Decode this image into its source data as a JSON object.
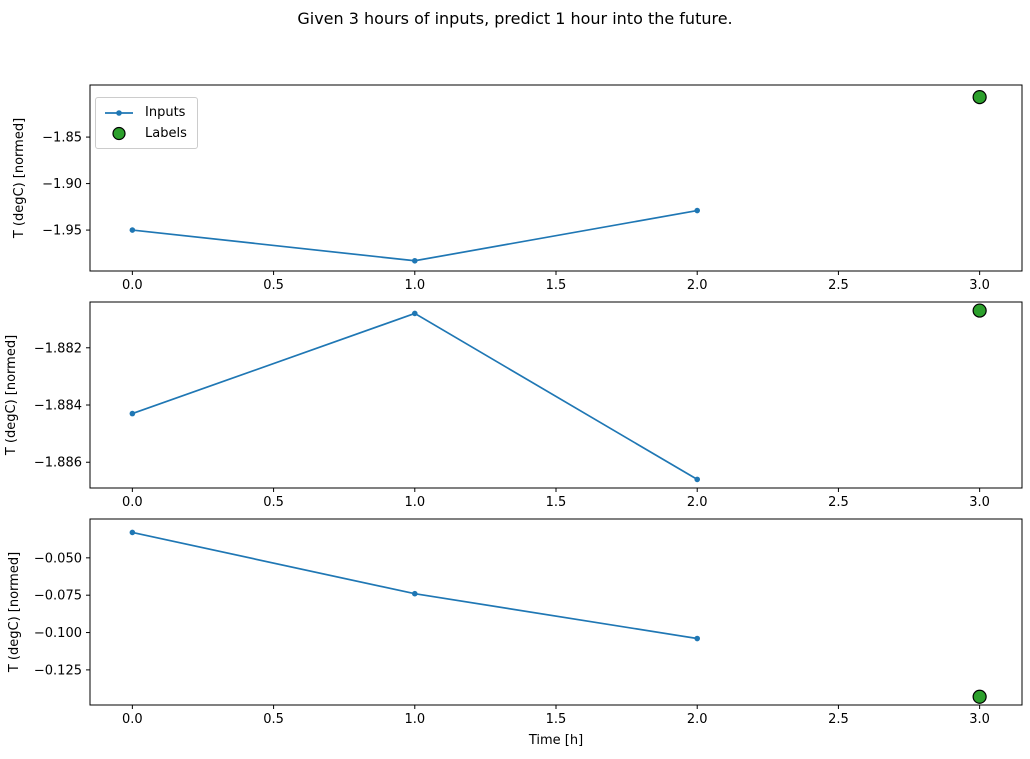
{
  "title": "Given 3 hours of inputs, predict 1 hour into the future.",
  "chart_data": {
    "type": "line",
    "title": "Given 3 hours of inputs, predict 1 hour into the future.",
    "xlabel": "Time [h]",
    "xlim": [
      -0.15,
      3.15
    ],
    "xtick_values": [
      0.0,
      0.5,
      1.0,
      1.5,
      2.0,
      2.5,
      3.0
    ],
    "xtick_labels": [
      "0.0",
      "0.5",
      "1.0",
      "1.5",
      "2.0",
      "2.5",
      "3.0"
    ],
    "grid": false,
    "legend": {
      "position": "upper-left",
      "entries": [
        {
          "label": "Inputs",
          "type": "line-marker",
          "color": "#1f77b4"
        },
        {
          "label": "Labels",
          "type": "scatter",
          "color": "#2ca02c",
          "edge_color": "#000000"
        }
      ]
    },
    "colors": {
      "inputs": "#1f77b4",
      "labels": "#2ca02c",
      "labels_edge": "#000000",
      "spine": "#000000"
    },
    "subplots": [
      {
        "ylabel": "T (degC) [normed]",
        "ylim": [
          -1.994,
          -1.794
        ],
        "ytick_values": [
          -1.85,
          -1.9,
          -1.95
        ],
        "ytick_labels": [
          "−1.85",
          "−1.90",
          "−1.95"
        ],
        "series": [
          {
            "name": "Inputs",
            "type": "line-marker",
            "x": [
              0,
              1,
              2
            ],
            "y": [
              -1.95,
              -1.983,
              -1.929
            ]
          },
          {
            "name": "Labels",
            "type": "scatter",
            "x": [
              3
            ],
            "y": [
              -1.807
            ]
          }
        ]
      },
      {
        "ylabel": "T (degC) [normed]",
        "ylim": [
          -1.8869,
          -1.8804
        ],
        "ytick_values": [
          -1.882,
          -1.884,
          -1.886
        ],
        "ytick_labels": [
          "−1.882",
          "−1.884",
          "−1.886"
        ],
        "series": [
          {
            "name": "Inputs",
            "type": "line-marker",
            "x": [
              0,
              1,
              2
            ],
            "y": [
              -1.8843,
              -1.8808,
              -1.8866
            ]
          },
          {
            "name": "Labels",
            "type": "scatter",
            "x": [
              3
            ],
            "y": [
              -1.8807
            ]
          }
        ]
      },
      {
        "ylabel": "T (degC) [normed]",
        "ylim": [
          -0.1485,
          -0.024
        ],
        "ytick_values": [
          -0.05,
          -0.075,
          -0.1,
          -0.125
        ],
        "ytick_labels": [
          "−0.050",
          "−0.075",
          "−0.100",
          "−0.125"
        ],
        "series": [
          {
            "name": "Inputs",
            "type": "line-marker",
            "x": [
              0,
              1,
              2
            ],
            "y": [
              -0.033,
              -0.074,
              -0.104
            ]
          },
          {
            "name": "Labels",
            "type": "scatter",
            "x": [
              3
            ],
            "y": [
              -0.143
            ]
          }
        ]
      }
    ]
  }
}
